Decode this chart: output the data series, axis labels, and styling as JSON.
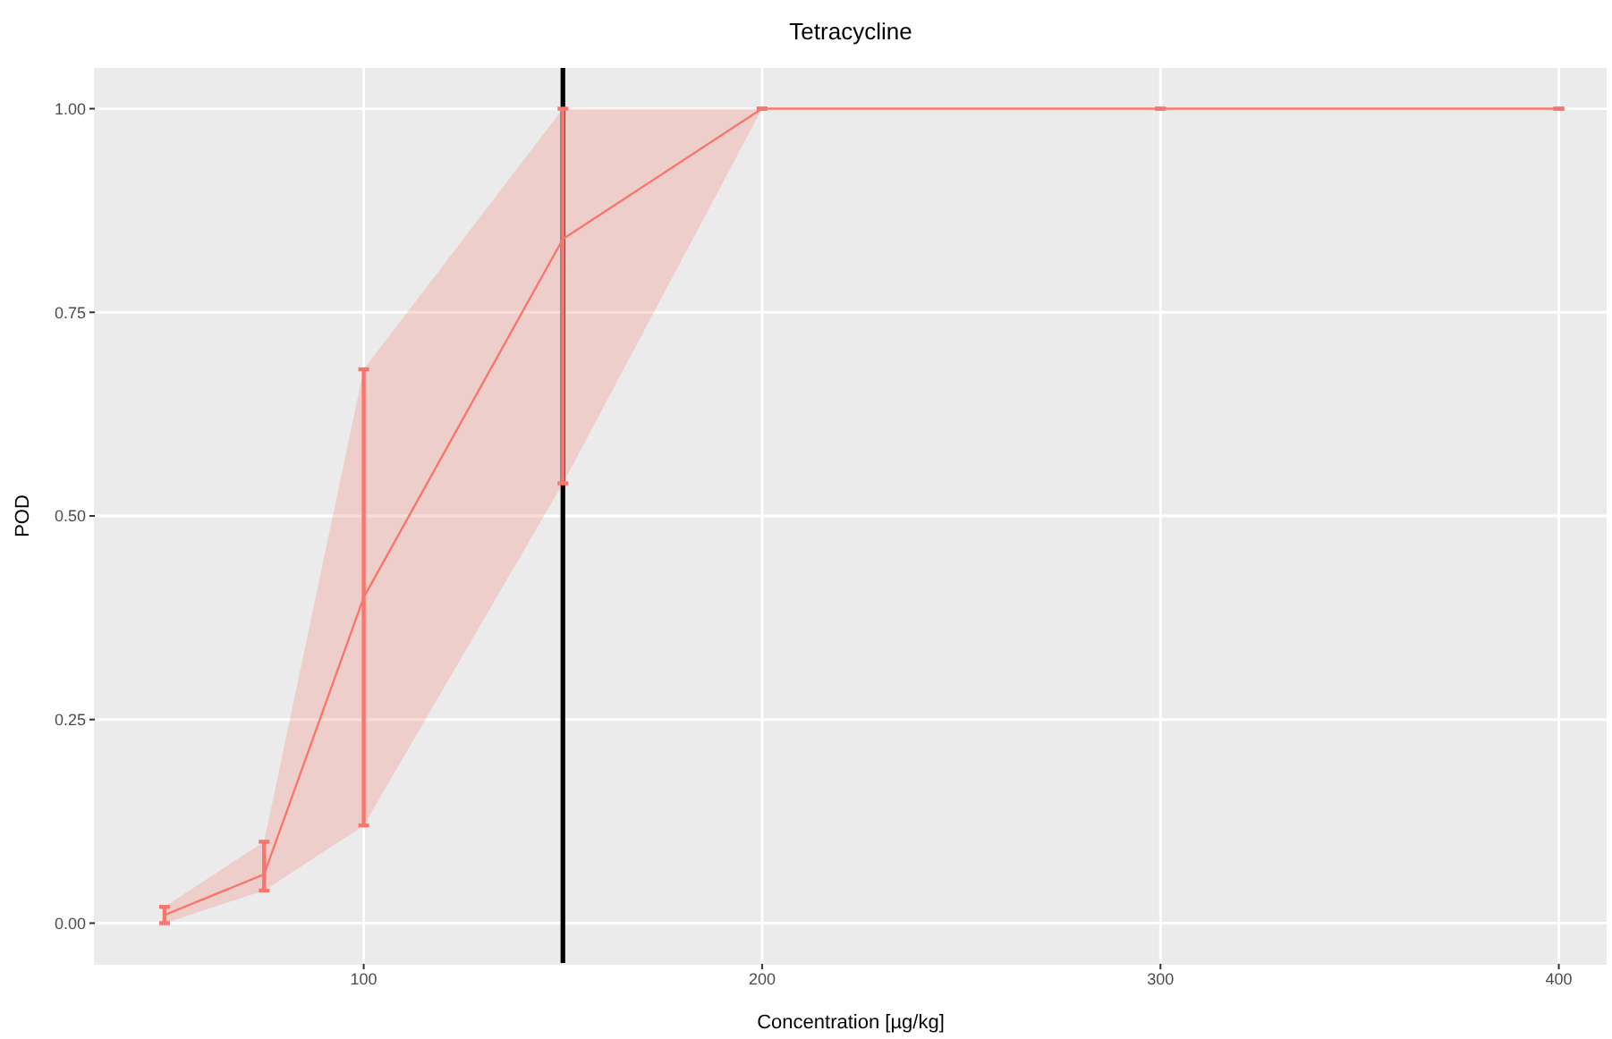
{
  "chart_data": {
    "type": "line",
    "title": "Tetracycline",
    "xlabel": "Concentration [µg/kg]",
    "ylabel": "POD",
    "x": [
      50,
      75,
      100,
      150,
      200,
      300,
      400
    ],
    "series": [
      {
        "color": "#f8766d",
        "values": [
          0.01,
          0.06,
          0.4,
          0.84,
          1,
          1,
          1
        ],
        "errors": [
          [
            0,
            0.02
          ],
          [
            0.04,
            0.1
          ],
          [
            0.12,
            0.68
          ],
          [
            0.54,
            1
          ],
          [
            1,
            1
          ],
          [
            1,
            1
          ],
          [
            1,
            1
          ]
        ],
        "lower": [
          0,
          0.04,
          0.12,
          0.54,
          1,
          1,
          1
        ],
        "upper": [
          0.02,
          0.1,
          0.68,
          1,
          1,
          1,
          1
        ]
      }
    ],
    "xlim": [
      32.5,
      412
    ],
    "ylim": [
      -0.05,
      1.05
    ],
    "xticks": [
      100,
      200,
      300,
      400
    ],
    "yticks": [
      {
        "value": 0,
        "label": "0.00"
      },
      {
        "value": 0.25,
        "label": "0.25"
      },
      {
        "value": 0.5,
        "label": "0.50"
      },
      {
        "value": 0.75,
        "label": "0.75"
      },
      {
        "value": 1,
        "label": "1.00"
      }
    ],
    "grid": true,
    "line_style": "solid",
    "ref_lines": [
      {
        "axis": "x",
        "value": 150,
        "color": "#000000"
      }
    ]
  }
}
